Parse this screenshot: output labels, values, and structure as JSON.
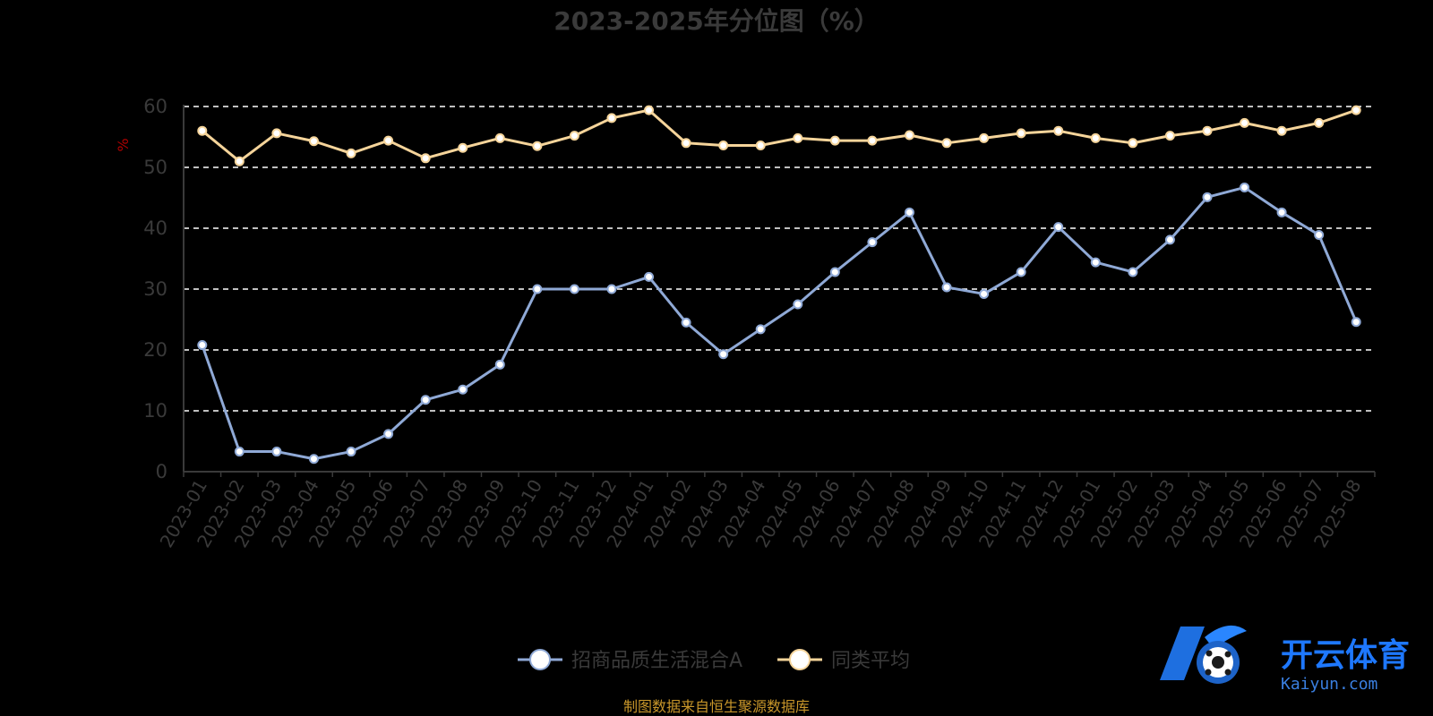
{
  "colors": {
    "background": "#000000",
    "grid": "#ffffff",
    "axis": "#3a3a3a",
    "text": "#3a3a3a",
    "unit": "#b00000",
    "source": "#c8962a"
  },
  "chart_data": {
    "type": "line",
    "title": "2023-2025年分位图（%）",
    "ylabel": "%",
    "ylim": [
      0,
      60
    ],
    "yticks": [
      0,
      10,
      20,
      30,
      40,
      50,
      60
    ],
    "grid": true,
    "legend_position": "bottom-center",
    "categories": [
      "2023-01",
      "2023-02",
      "2023-03",
      "2023-04",
      "2023-05",
      "2023-06",
      "2023-07",
      "2023-08",
      "2023-09",
      "2023-10",
      "2023-11",
      "2023-12",
      "2024-01",
      "2024-02",
      "2024-03",
      "2024-04",
      "2024-05",
      "2024-06",
      "2024-07",
      "2024-08",
      "2024-09",
      "2024-10",
      "2024-11",
      "2024-12",
      "2025-01",
      "2025-02",
      "2025-03",
      "2025-04",
      "2025-05",
      "2025-06",
      "2025-07",
      "2025-08"
    ],
    "series": [
      {
        "name": "招商品质生活混合A",
        "color": "#8fa9d6",
        "values": [
          20.8,
          3.3,
          3.3,
          2.1,
          3.3,
          6.2,
          11.8,
          13.5,
          17.6,
          30.0,
          30.0,
          30.0,
          32.0,
          24.5,
          19.3,
          23.4,
          27.5,
          32.8,
          37.7,
          42.6,
          30.3,
          29.2,
          32.8,
          40.2,
          34.4,
          32.8,
          38.1,
          45.1,
          46.7,
          42.6,
          38.9,
          24.6
        ]
      },
      {
        "name": "同类平均",
        "color": "#f5d49a",
        "values": [
          56.0,
          51.0,
          55.6,
          54.3,
          52.3,
          54.4,
          51.5,
          53.2,
          54.8,
          53.5,
          55.2,
          58.1,
          59.4,
          54.0,
          53.6,
          53.6,
          54.8,
          54.4,
          54.4,
          55.3,
          54.0,
          54.8,
          55.6,
          56.0,
          54.8,
          54.0,
          55.2,
          56.0,
          57.3,
          56.0,
          57.3,
          59.4
        ]
      }
    ]
  },
  "footer": {
    "source": "制图数据来自恒生聚源数据库"
  },
  "watermark": {
    "text": "开云体育",
    "sub": "Kaiyun.com",
    "icon": "kaiyun-logo-icon"
  }
}
